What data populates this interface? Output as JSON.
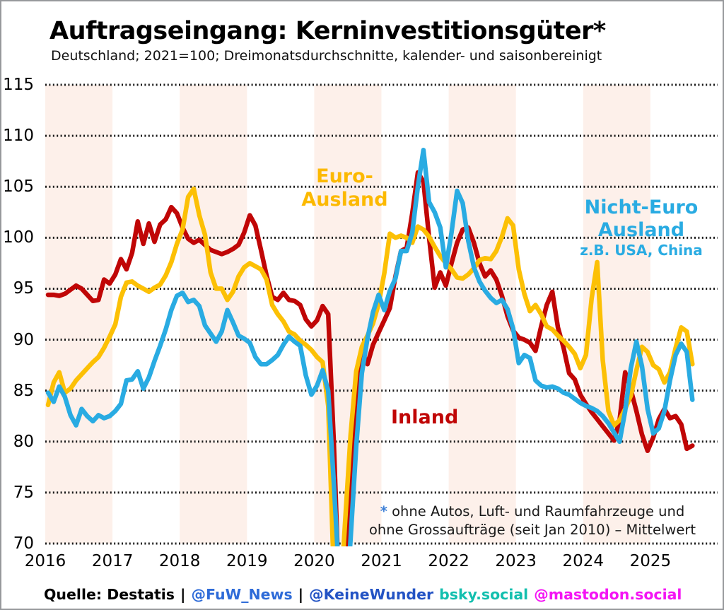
{
  "header": {
    "title": "Auftragseingang: Kerninvestitionsgüter*",
    "subtitle": "Deutschland; 2021=100; Dreimonatsdurchschnitte, kalender- und saisonbereinigt"
  },
  "chart_data": {
    "type": "line",
    "title": "Auftragseingang: Kerninvestitionsgüter",
    "xlabel": "",
    "ylabel": "",
    "frequency": "monthly",
    "time_range": "2016-01 to 2025-08",
    "ylim": [
      70,
      115
    ],
    "y_ticks": [
      70,
      75,
      80,
      85,
      90,
      95,
      100,
      105,
      110,
      115
    ],
    "x_tick_labels": [
      "2016",
      "2017",
      "2018",
      "2019",
      "2020",
      "2021",
      "2022",
      "2023",
      "2024",
      "2025"
    ],
    "grid": "dotted horizontal lines, alternating vertical year bands shaded",
    "legend_position": "inline labels on chart",
    "band_color": "#fdf0ea",
    "grid_color": "#1a1a1a",
    "series": [
      {
        "name": "Inland",
        "color": "#c00606",
        "values": [
          94.4,
          94.4,
          94.3,
          94.5,
          94.9,
          95.3,
          95.0,
          94.4,
          93.8,
          93.9,
          95.9,
          95.5,
          96.4,
          97.9,
          96.9,
          98.5,
          101.6,
          99.4,
          101.4,
          99.6,
          101.3,
          101.8,
          103.0,
          102.4,
          101.0,
          99.9,
          99.5,
          99.8,
          99.3,
          98.8,
          98.6,
          98.4,
          98.6,
          98.9,
          99.3,
          100.5,
          102.2,
          101.2,
          98.8,
          96.3,
          94.2,
          93.9,
          94.6,
          93.9,
          93.8,
          93.4,
          92.0,
          91.3,
          91.9,
          93.3,
          92.5,
          80.0,
          64.0,
          68.0,
          76.0,
          84.5,
          88.8,
          87.6,
          89.5,
          90.7,
          91.9,
          93.1,
          96.2,
          98.7,
          99.0,
          102.4,
          106.4,
          105.5,
          100.0,
          95.1,
          96.6,
          95.3,
          97.5,
          99.5,
          100.8,
          101.0,
          99.5,
          97.5,
          96.2,
          96.8,
          95.9,
          94.3,
          92.3,
          90.9,
          90.2,
          90.0,
          89.7,
          88.9,
          91.3,
          93.4,
          94.7,
          91.2,
          89.2,
          86.7,
          86.1,
          84.6,
          83.7,
          82.9,
          82.2,
          81.5,
          80.8,
          80.1,
          82.1,
          86.8,
          85.1,
          83.0,
          80.7,
          79.1,
          80.4,
          82.2,
          83.2,
          82.3,
          82.5,
          81.7,
          79.3,
          79.6
        ]
      },
      {
        "name": "Euro-Ausland",
        "color": "#fcc005",
        "values": [
          83.6,
          85.8,
          86.8,
          84.8,
          85.2,
          86.0,
          86.6,
          87.2,
          87.8,
          88.3,
          89.2,
          90.3,
          91.5,
          94.2,
          95.6,
          95.7,
          95.3,
          95.0,
          94.7,
          95.1,
          95.4,
          96.3,
          97.6,
          99.4,
          100.8,
          104.0,
          104.8,
          102.2,
          100.3,
          96.6,
          95.0,
          95.0,
          93.9,
          94.7,
          96.2,
          97.1,
          97.5,
          97.2,
          96.9,
          95.9,
          93.4,
          92.5,
          91.8,
          90.8,
          90.5,
          89.9,
          89.5,
          89.0,
          88.3,
          87.8,
          83.5,
          67.0,
          63.0,
          72.0,
          80.7,
          86.9,
          89.3,
          90.4,
          91.6,
          93.5,
          96.5,
          100.4,
          100.0,
          100.2,
          100.0,
          99.5,
          101.1,
          100.8,
          100.1,
          99.1,
          98.2,
          97.5,
          96.9,
          96.1,
          96.0,
          96.4,
          97.0,
          97.8,
          98.0,
          97.9,
          98.7,
          100.1,
          101.9,
          101.2,
          96.9,
          94.5,
          92.8,
          93.4,
          92.5,
          91.3,
          91.0,
          90.4,
          89.9,
          89.3,
          88.6,
          87.2,
          88.5,
          94.0,
          97.6,
          88.0,
          83.0,
          81.6,
          82.1,
          83.2,
          84.5,
          87.0,
          89.3,
          88.8,
          87.5,
          87.1,
          85.8,
          86.8,
          89.2,
          91.2,
          90.8,
          87.6
        ]
      },
      {
        "name": "Nicht-Euro Ausland",
        "color": "#29abe2",
        "values": [
          84.8,
          83.9,
          85.4,
          84.4,
          82.6,
          81.6,
          83.2,
          82.5,
          82.0,
          82.6,
          82.3,
          82.5,
          83.0,
          83.7,
          86.0,
          86.1,
          86.9,
          85.2,
          86.3,
          87.9,
          89.4,
          91.0,
          92.9,
          94.3,
          94.6,
          93.7,
          93.9,
          93.3,
          91.4,
          90.6,
          89.8,
          90.8,
          92.9,
          91.7,
          90.4,
          90.1,
          89.7,
          88.3,
          87.6,
          87.6,
          88.0,
          88.5,
          89.5,
          90.3,
          89.8,
          89.4,
          86.5,
          84.6,
          85.5,
          87.0,
          85.0,
          76.0,
          66.0,
          62.0,
          70.5,
          79.5,
          86.7,
          90.1,
          92.7,
          94.4,
          92.9,
          94.8,
          96.0,
          98.7,
          98.7,
          100.5,
          105.0,
          108.6,
          103.5,
          102.5,
          101.0,
          97.1,
          100.5,
          104.6,
          103.4,
          99.7,
          97.1,
          95.7,
          94.8,
          94.1,
          93.6,
          93.9,
          93.0,
          91.1,
          87.7,
          88.5,
          88.2,
          86.0,
          85.5,
          85.3,
          85.4,
          85.2,
          84.8,
          84.6,
          84.2,
          83.8,
          83.5,
          83.3,
          83.0,
          82.5,
          81.8,
          80.9,
          80.0,
          83.0,
          87.2,
          89.8,
          87.4,
          83.2,
          80.8,
          81.3,
          83.0,
          86.0,
          88.5,
          89.6,
          88.8,
          84.1
        ]
      }
    ]
  },
  "annotations": {
    "euro_line1": "Euro-",
    "euro_line2": "Ausland",
    "nichteuro_line1": "Nicht-Euro",
    "nichteuro_line2": "Ausland",
    "nichteuro_sub": "z.B. USA, China",
    "inland": "Inland"
  },
  "footnote": {
    "asterisk": "*",
    "line1": "ohne Autos, Luft- und Raumfahrzeuge und",
    "line2": "ohne Grossaufträge (seit Jan 2010) – Mittelwert"
  },
  "footer": {
    "source": "Quelle: Destatis",
    "sep1": "|",
    "fuw": "@FuW_News",
    "sep2": "|",
    "keinewunder": "@KeineWunder",
    "bsky": "bsky.social",
    "mastodon": "@mastodon.social"
  },
  "colors": {
    "inland": "#c00606",
    "euro_ausland": "#fcc005",
    "nicht_euro_ausland": "#29abe2",
    "year_band": "#fdf0ea",
    "fuw_link": "#2e6bd8",
    "keinewunder_link": "#2353c4",
    "bsky_link": "#12bfae",
    "mastodon_link": "#f414f4",
    "footnote_asterisk": "#3c7fd6"
  }
}
